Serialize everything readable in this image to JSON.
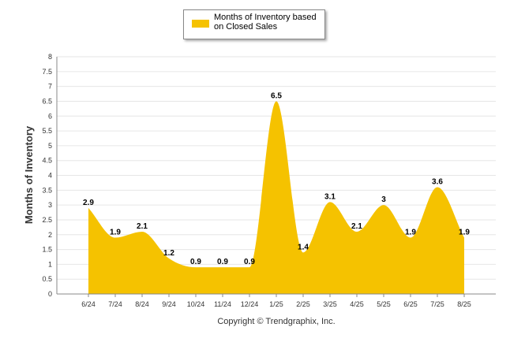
{
  "legend": {
    "label": "Months of Inventory based on Closed Sales"
  },
  "footer": {
    "copyright": "Copyright © Trendgraphix, Inc."
  },
  "colors": {
    "area": "#F5C200",
    "grid": "#e6e6e6",
    "axis": "#888888",
    "label": "#000000"
  },
  "chart_data": {
    "type": "area",
    "ylabel": "Months of Inventory",
    "xlabel": "",
    "ylim": [
      0,
      8
    ],
    "yticks": [
      "0",
      "0.5",
      "1",
      "1.5",
      "2",
      "2.5",
      "3",
      "3.5",
      "4",
      "4.5",
      "5",
      "5.5",
      "6",
      "6.5",
      "7",
      "7.5",
      "8"
    ],
    "grid": true,
    "legend_position": "top-center",
    "categories": [
      "6/24",
      "7/24",
      "8/24",
      "9/24",
      "10/24",
      "11/24",
      "12/24",
      "1/25",
      "2/25",
      "3/25",
      "4/25",
      "5/25",
      "6/25",
      "7/25",
      "8/25"
    ],
    "series": [
      {
        "name": "Months of Inventory based on Closed Sales",
        "values": [
          2.9,
          1.9,
          2.1,
          1.2,
          0.9,
          0.9,
          0.9,
          6.5,
          1.4,
          3.1,
          2.1,
          3,
          1.9,
          3.6,
          1.9
        ],
        "labels": [
          "2.9",
          "1.9",
          "2.1",
          "1.2",
          "0.9",
          "0.9",
          "0.9",
          "6.5",
          "1.4",
          "3.1",
          "2.1",
          "3",
          "1.9",
          "3.6",
          "1.9"
        ]
      }
    ]
  }
}
